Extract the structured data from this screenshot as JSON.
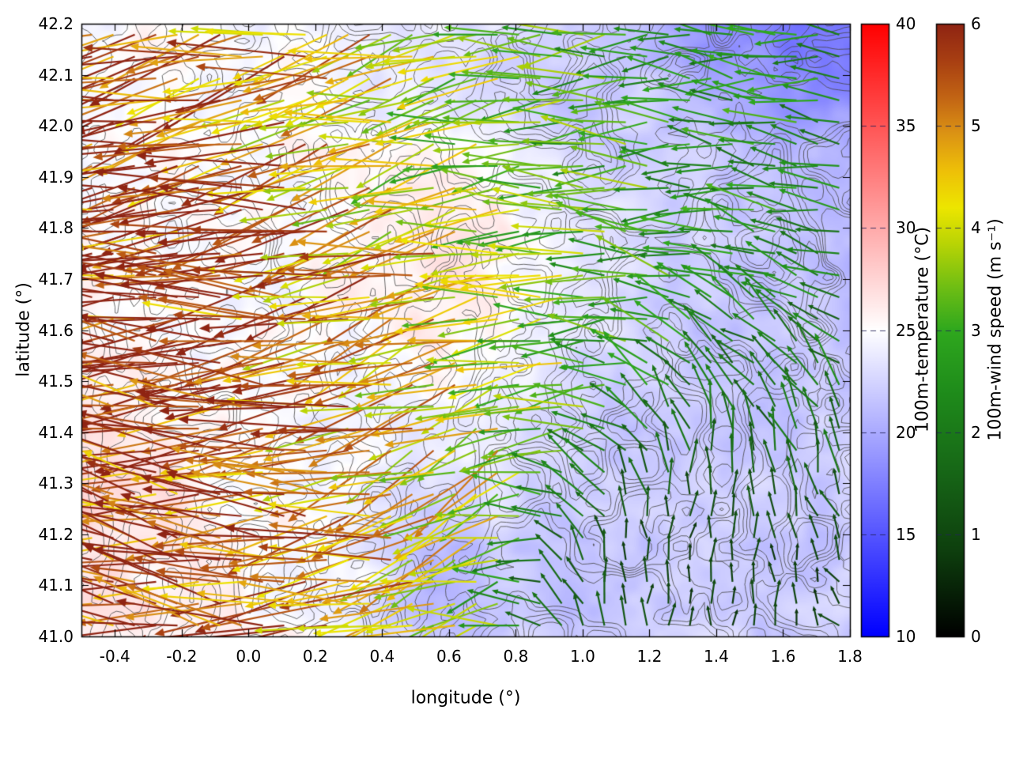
{
  "chart_data": {
    "type": "vector_field_map",
    "title": "",
    "xlabel": "longitude (°)",
    "ylabel": "latitude (°)",
    "xlim": [
      -0.5,
      1.8
    ],
    "ylim": [
      41.0,
      42.2
    ],
    "xtick_values": [
      -0.4,
      -0.2,
      0.0,
      0.2,
      0.4,
      0.6,
      0.8,
      1.0,
      1.2,
      1.4,
      1.6,
      1.8
    ],
    "xtick_labels": [
      "-0.4",
      "-0.2",
      "0.0",
      "0.2",
      "0.4",
      "0.6",
      "0.8",
      "1.0",
      "1.2",
      "1.4",
      "1.6",
      "1.8"
    ],
    "ytick_values": [
      41.0,
      41.1,
      41.2,
      41.3,
      41.4,
      41.5,
      41.6,
      41.7,
      41.8,
      41.9,
      42.0,
      42.1,
      42.2
    ],
    "ytick_labels": [
      "41.0",
      "41.1",
      "41.2",
      "41.3",
      "41.4",
      "41.5",
      "41.6",
      "41.7",
      "41.8",
      "41.9",
      "42.0",
      "42.1",
      "42.2"
    ],
    "grid": false,
    "colorbar_temperature": {
      "label": "100m-temperature (°C)",
      "min": 10,
      "max": 40,
      "tick_values": [
        10,
        15,
        20,
        25,
        30,
        35,
        40
      ],
      "tick_labels": [
        "10",
        "15",
        "20",
        "25",
        "30",
        "35",
        "40"
      ],
      "stops": [
        [
          0.0,
          "#0000ff"
        ],
        [
          0.5,
          "#ffffff"
        ],
        [
          1.0,
          "#ff0000"
        ]
      ]
    },
    "colorbar_wind": {
      "label": "100m-wind speed (m s⁻¹)",
      "min": 0,
      "max": 6,
      "tick_values": [
        0,
        1,
        2,
        3,
        4,
        5,
        6
      ],
      "tick_labels": [
        "0",
        "1",
        "2",
        "3",
        "4",
        "5",
        "6"
      ],
      "stops": [
        [
          0.0,
          "#000000"
        ],
        [
          0.14,
          "#0e3f0e"
        ],
        [
          0.27,
          "#176717"
        ],
        [
          0.4,
          "#1f8c1b"
        ],
        [
          0.5,
          "#2fa81e"
        ],
        [
          0.57,
          "#6fbe14"
        ],
        [
          0.64,
          "#b8d405"
        ],
        [
          0.7,
          "#ede600"
        ],
        [
          0.76,
          "#eec008"
        ],
        [
          0.82,
          "#dc9414"
        ],
        [
          0.88,
          "#c26414"
        ],
        [
          0.94,
          "#a83f12"
        ],
        [
          1.0,
          "#8f2413"
        ]
      ]
    },
    "temperature_field": {
      "units": "degC",
      "note": "coarse grid read from shading; rows ordered south to north",
      "lon": [
        -0.5,
        -0.29,
        -0.08,
        0.13,
        0.34,
        0.55,
        0.76,
        0.97,
        1.18,
        1.39,
        1.59,
        1.8
      ],
      "lat": [
        41.0,
        41.15,
        41.3,
        41.45,
        41.6,
        41.75,
        41.9,
        42.05,
        42.2
      ],
      "values_c": [
        [
          26.5,
          26.0,
          25.5,
          25.0,
          24.0,
          21.5,
          22.0,
          22.0,
          22.5,
          22.5,
          22.0,
          22.0
        ],
        [
          27.0,
          26.0,
          25.5,
          25.0,
          24.0,
          20.5,
          22.0,
          21.5,
          22.0,
          22.0,
          22.0,
          22.0
        ],
        [
          27.5,
          26.5,
          25.5,
          25.0,
          24.5,
          23.0,
          23.0,
          22.0,
          21.5,
          22.0,
          22.0,
          22.0
        ],
        [
          26.0,
          25.5,
          25.0,
          25.0,
          24.5,
          24.5,
          24.0,
          23.0,
          22.0,
          21.5,
          21.5,
          22.0
        ],
        [
          25.5,
          25.0,
          25.0,
          25.0,
          25.0,
          26.5,
          25.0,
          23.5,
          22.5,
          22.0,
          21.5,
          21.5
        ],
        [
          25.5,
          25.0,
          25.0,
          25.0,
          25.5,
          26.5,
          26.0,
          24.0,
          23.0,
          22.0,
          21.5,
          21.0
        ],
        [
          25.0,
          25.0,
          25.0,
          25.0,
          25.0,
          25.5,
          25.0,
          23.5,
          22.5,
          22.0,
          21.5,
          21.0
        ],
        [
          25.0,
          25.0,
          25.0,
          25.0,
          24.5,
          24.0,
          23.0,
          21.0,
          22.0,
          21.0,
          19.0,
          18.5
        ],
        [
          25.0,
          25.0,
          25.0,
          24.5,
          24.0,
          23.5,
          23.0,
          22.0,
          21.0,
          18.0,
          17.0,
          17.5
        ]
      ]
    },
    "wind_field": {
      "units": "m/s",
      "note": "coarse grid read from arrows; dir in math degrees (0=E,90=N,180=W); rows south to north",
      "lon": [
        -0.5,
        -0.29,
        -0.08,
        0.13,
        0.34,
        0.55,
        0.76,
        0.97,
        1.18,
        1.39,
        1.59,
        1.8
      ],
      "lat": [
        41.0,
        41.15,
        41.3,
        41.45,
        41.6,
        41.75,
        41.9,
        42.05,
        42.2
      ],
      "dir_deg": [
        [
          165,
          168,
          170,
          175,
          185,
          195,
          185,
          120,
          95,
          90,
          85,
          150
        ],
        [
          168,
          170,
          172,
          178,
          188,
          200,
          195,
          110,
          90,
          85,
          90,
          120
        ],
        [
          172,
          174,
          176,
          180,
          190,
          205,
          210,
          150,
          100,
          80,
          95,
          110
        ],
        [
          175,
          176,
          178,
          182,
          192,
          200,
          205,
          190,
          140,
          110,
          120,
          130
        ],
        [
          178,
          180,
          182,
          185,
          195,
          200,
          195,
          185,
          170,
          150,
          140,
          145
        ],
        [
          182,
          184,
          186,
          188,
          195,
          190,
          185,
          180,
          175,
          170,
          160,
          165
        ],
        [
          185,
          186,
          188,
          190,
          195,
          192,
          188,
          182,
          178,
          172,
          168,
          175
        ],
        [
          188,
          190,
          192,
          193,
          195,
          192,
          188,
          184,
          180,
          176,
          172,
          178
        ],
        [
          190,
          192,
          193,
          194,
          196,
          194,
          190,
          186,
          182,
          178,
          174,
          180
        ]
      ],
      "speed_ms": [
        [
          6.0,
          6.0,
          6.0,
          5.5,
          5.0,
          4.5,
          3.0,
          1.5,
          1.0,
          1.0,
          1.0,
          1.2
        ],
        [
          6.0,
          6.0,
          6.0,
          5.5,
          5.0,
          4.5,
          3.5,
          1.5,
          1.0,
          0.8,
          0.8,
          1.0
        ],
        [
          6.0,
          6.0,
          6.0,
          5.5,
          5.0,
          4.5,
          4.0,
          2.5,
          1.5,
          1.2,
          1.5,
          1.5
        ],
        [
          6.0,
          6.0,
          6.0,
          5.5,
          5.0,
          4.5,
          4.0,
          3.5,
          2.5,
          2.0,
          2.0,
          2.0
        ],
        [
          6.0,
          6.0,
          6.0,
          5.5,
          5.0,
          4.5,
          4.0,
          3.5,
          3.0,
          2.5,
          2.0,
          2.0
        ],
        [
          6.0,
          6.0,
          6.0,
          5.5,
          5.0,
          4.5,
          4.0,
          3.5,
          3.0,
          2.5,
          2.5,
          2.0
        ],
        [
          6.0,
          6.0,
          6.0,
          5.0,
          4.5,
          4.0,
          3.5,
          3.0,
          3.0,
          2.5,
          2.5,
          2.5
        ],
        [
          6.0,
          6.0,
          5.5,
          5.0,
          4.5,
          4.0,
          3.5,
          3.0,
          3.0,
          2.5,
          2.5,
          2.5
        ],
        [
          6.0,
          6.0,
          5.5,
          5.0,
          4.5,
          4.0,
          3.5,
          3.0,
          3.0,
          2.5,
          2.5,
          2.5
        ]
      ]
    },
    "contours": {
      "color": "rgba(70,70,70,0.8)",
      "seed": 1337,
      "levels": [
        0.4,
        0.48,
        0.56,
        0.64,
        0.72
      ]
    }
  }
}
